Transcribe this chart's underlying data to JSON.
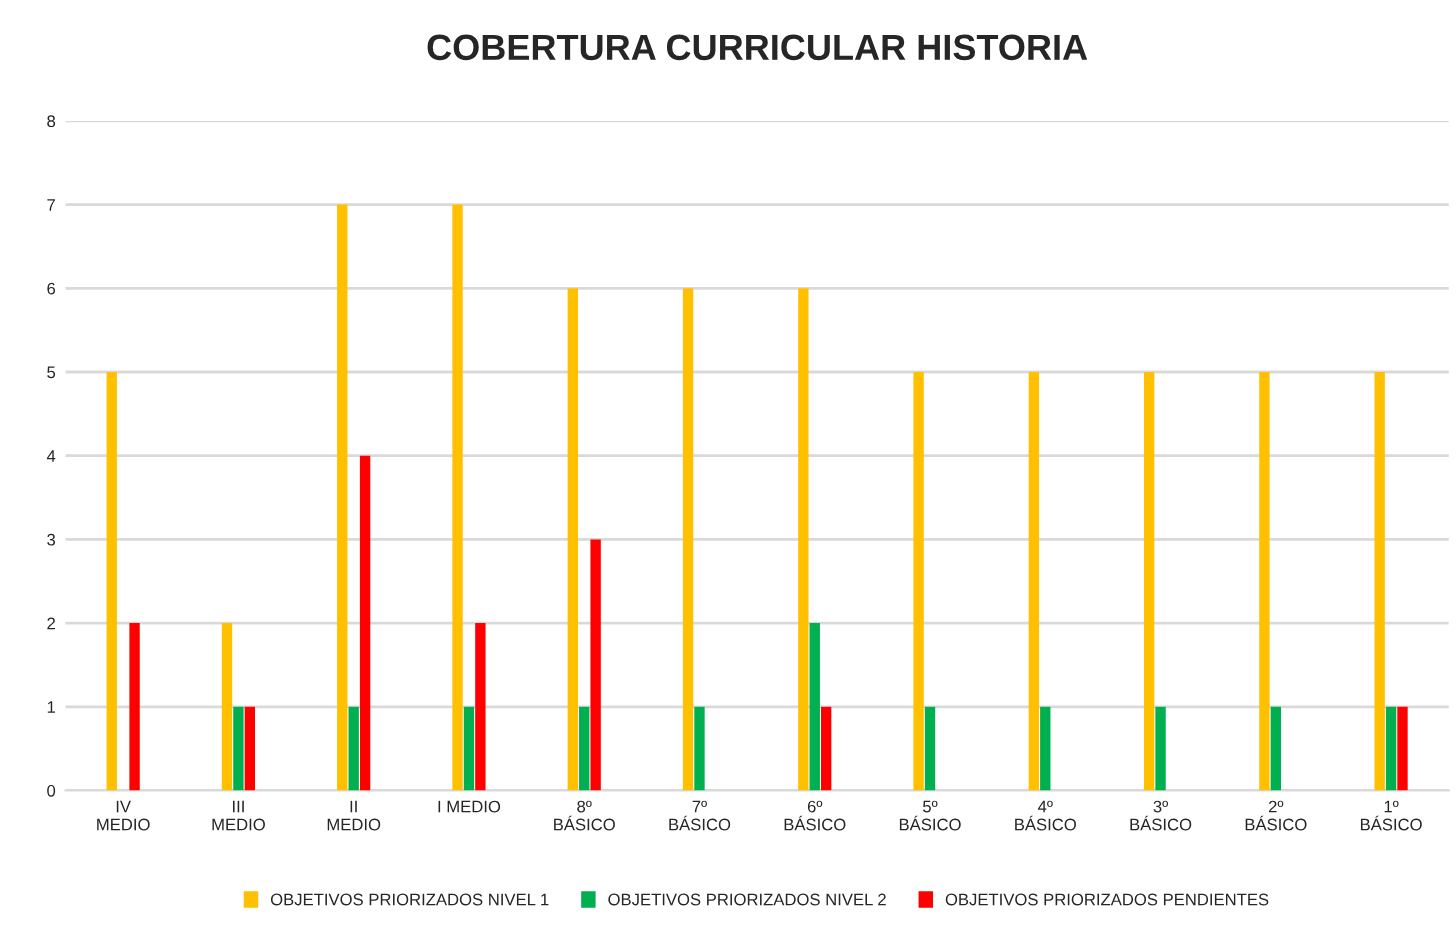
{
  "chart_data": {
    "type": "bar",
    "title": "COBERTURA CURRICULAR HISTORIA",
    "categories": [
      "IV\nMEDIO",
      "III\nMEDIO",
      "II\nMEDIO",
      "I MEDIO",
      "8º\nBÁSICO",
      "7º\nBÁSICO",
      "6º\nBÁSICO",
      "5º\nBÁSICO",
      "4º\nBÁSICO",
      "3º\nBÁSICO",
      "2º\nBÁSICO",
      "1º\nBÁSICO"
    ],
    "series": [
      {
        "name": "OBJETIVOS PRIORIZADOS NIVEL 1",
        "color": "#ffc000",
        "values": [
          5,
          2,
          7,
          7,
          6,
          6,
          6,
          5,
          5,
          5,
          5,
          5
        ]
      },
      {
        "name": "OBJETIVOS PRIORIZADOS NIVEL 2",
        "color": "#00b050",
        "values": [
          0,
          1,
          1,
          1,
          1,
          1,
          2,
          1,
          1,
          1,
          1,
          1
        ]
      },
      {
        "name": "OBJETIVOS PRIORIZADOS PENDIENTES",
        "color": "#ff0000",
        "values": [
          2,
          1,
          4,
          2,
          3,
          0,
          1,
          0,
          0,
          0,
          0,
          1
        ]
      }
    ],
    "ylim": [
      0,
      8
    ],
    "yticks": [
      0,
      1,
      2,
      3,
      4,
      5,
      6,
      7,
      8
    ],
    "grid": "y",
    "legend": "bottom"
  }
}
